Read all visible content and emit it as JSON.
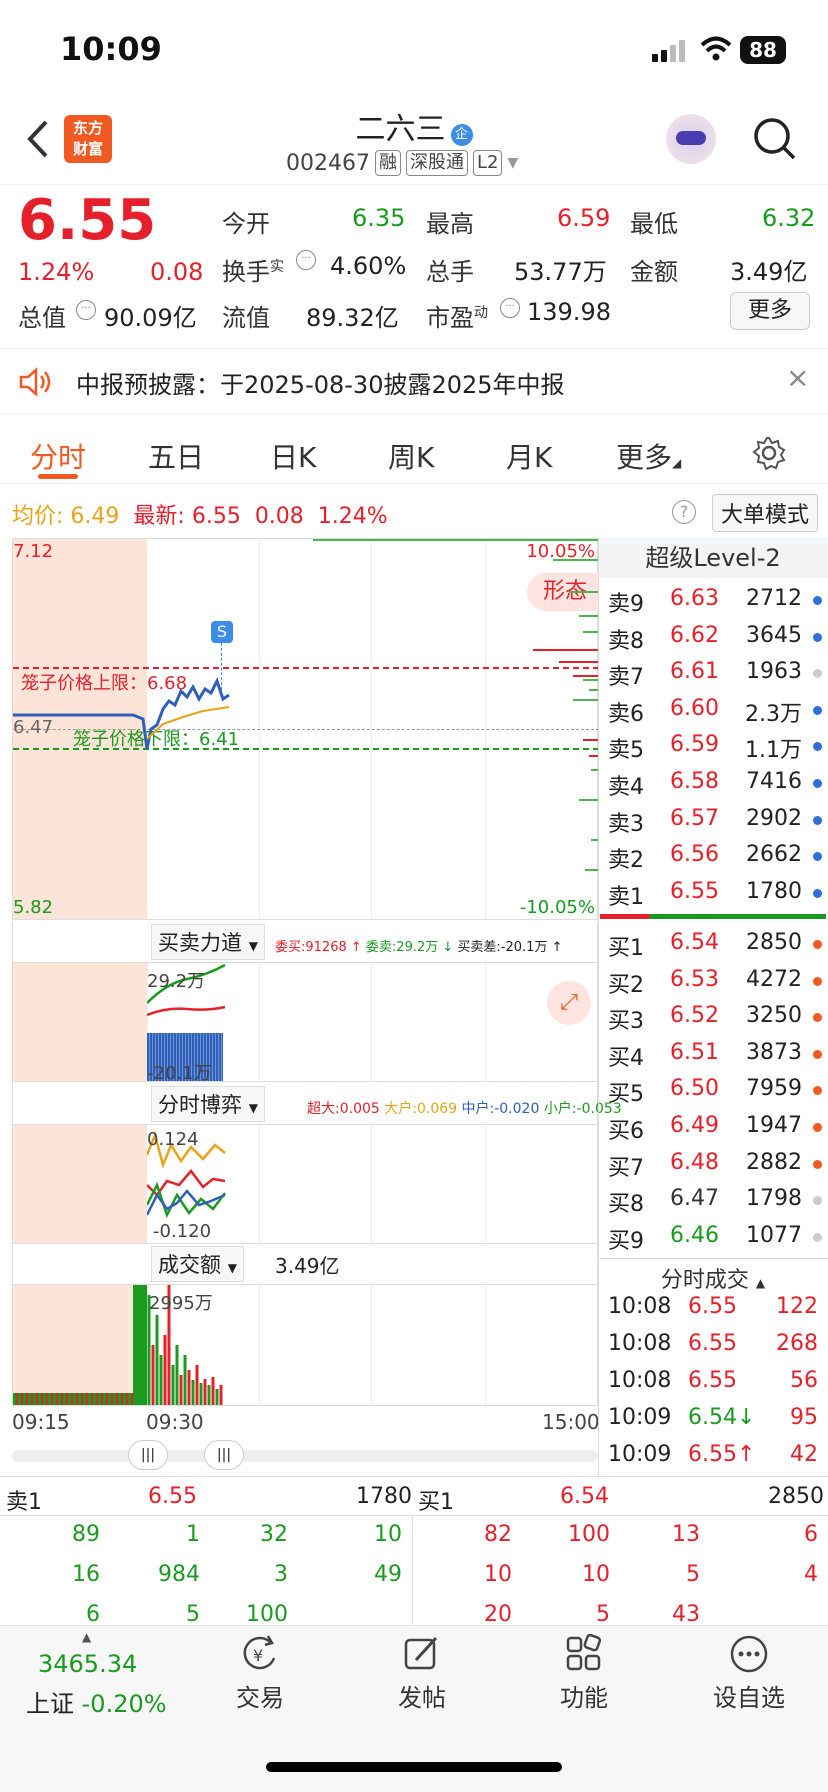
{
  "status": {
    "time": "10:09",
    "battery": "88"
  },
  "header": {
    "back_icon": "chevron-left-icon",
    "logo_line1": "东方",
    "logo_line2": "财富",
    "name": "二六三",
    "name_badge": "企",
    "code": "002467",
    "tags": [
      "融",
      "深股通",
      "L2"
    ]
  },
  "quote": {
    "price": "6.55",
    "change_pct": "1.24%",
    "change": "0.08",
    "open_label": "今开",
    "open": "6.35",
    "high_label": "最高",
    "high": "6.59",
    "low_label": "最低",
    "low": "6.32",
    "turnover_label": "换手",
    "turnover_sup": "实",
    "turnover": "4.60%",
    "volume_label": "总手",
    "volume": "53.77万",
    "amount_label": "金额",
    "amount": "3.49亿",
    "mcap_label": "总值",
    "mcap": "90.09亿",
    "float_label": "流值",
    "float": "89.32亿",
    "pe_label": "市盈",
    "pe_sup": "动",
    "pe": "139.98",
    "more": "更多"
  },
  "notice": {
    "text": "中报预披露：于2025-08-30披露2025年中报"
  },
  "tabs": [
    "分时",
    "五日",
    "日K",
    "周K",
    "月K",
    "更多"
  ],
  "chart_header": {
    "avg_label": "均价:",
    "avg": "6.49",
    "latest_label": "最新:",
    "latest": "6.55",
    "chg": "0.08",
    "pct": "1.24%",
    "mode_btn": "大单模式"
  },
  "chart": {
    "ymax": "7.12",
    "ymin": "5.82",
    "pct_top": "10.05%",
    "pct_bot": "-10.05%",
    "prev_close": "6.47",
    "upper_label": "笼子价格上限：6.68",
    "lower_label": "笼子价格下限：6.41",
    "pattern": "形态",
    "s_marker": "S",
    "x_start": "09:15",
    "x_mid": "09:30",
    "x_end": "15:00"
  },
  "panel1": {
    "title": "买卖力道",
    "stat1": "委买:91268",
    "stat2": "委卖:29.2万",
    "stat3": "买卖差:-20.1万",
    "top": "29.2万",
    "bot": "-20.1万"
  },
  "panel2": {
    "title": "分时博弈",
    "s1": "超大:0.005",
    "s2": "大户:0.069",
    "s3": "中户:-0.020",
    "s4": "小户:-0.053",
    "top": "0.124",
    "bot": "-0.120"
  },
  "panel3": {
    "title": "成交额",
    "value": "3.49亿",
    "max": "2995万"
  },
  "orderbook": {
    "title": "超级Level-2",
    "asks": [
      [
        "卖9",
        "6.63",
        "2712"
      ],
      [
        "卖8",
        "6.62",
        "3645"
      ],
      [
        "卖7",
        "6.61",
        "1963"
      ],
      [
        "卖6",
        "6.60",
        "2.3万"
      ],
      [
        "卖5",
        "6.59",
        "1.1万"
      ],
      [
        "卖4",
        "6.58",
        "7416"
      ],
      [
        "卖3",
        "6.57",
        "2902"
      ],
      [
        "卖2",
        "6.56",
        "2662"
      ],
      [
        "卖1",
        "6.55",
        "1780"
      ]
    ],
    "bids": [
      [
        "买1",
        "6.54",
        "2850"
      ],
      [
        "买2",
        "6.53",
        "4272"
      ],
      [
        "买3",
        "6.52",
        "3250"
      ],
      [
        "买4",
        "6.51",
        "3873"
      ],
      [
        "买5",
        "6.50",
        "7959"
      ],
      [
        "买6",
        "6.49",
        "1947"
      ],
      [
        "买7",
        "6.48",
        "2882"
      ],
      [
        "买8",
        "6.47",
        "1798"
      ],
      [
        "买9",
        "6.46",
        "1077"
      ]
    ],
    "ticks_title": "分时成交",
    "ticks": [
      [
        "10:08",
        "6.55",
        "122",
        ""
      ],
      [
        "10:08",
        "6.55",
        "268",
        ""
      ],
      [
        "10:08",
        "6.55",
        "56",
        ""
      ],
      [
        "10:09",
        "6.54",
        "95",
        "↓"
      ],
      [
        "10:09",
        "6.55",
        "42",
        "↑"
      ]
    ]
  },
  "queue": {
    "sell_label": "卖1",
    "sell_price": "6.55",
    "sell_vol": "1780",
    "buy_label": "买1",
    "buy_price": "6.54",
    "buy_vol": "2850",
    "sell_rows": [
      [
        "89",
        "1",
        "32",
        "10"
      ],
      [
        "16",
        "984",
        "3",
        "49"
      ],
      [
        "6",
        "5",
        "100",
        ""
      ]
    ],
    "buy_rows": [
      [
        "82",
        "100",
        "13",
        "6"
      ],
      [
        "10",
        "10",
        "5",
        "4"
      ],
      [
        "20",
        "5",
        "43",
        ""
      ]
    ]
  },
  "bottom": {
    "index_value": "3465.34",
    "index_name": "上证",
    "index_chg": "-0.20%",
    "items": [
      "交易",
      "发帖",
      "功能",
      "设自选"
    ]
  }
}
